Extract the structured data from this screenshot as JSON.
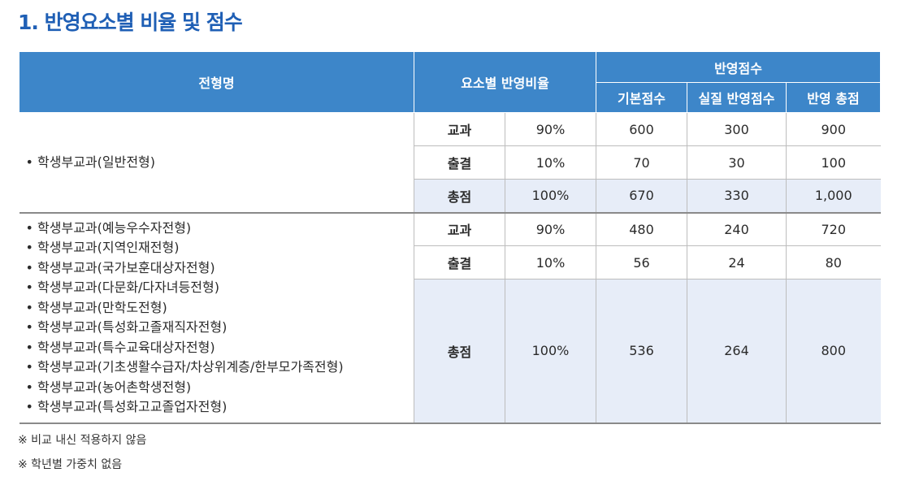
{
  "title": "1. 반영요소별 비율 및 점수",
  "headers": {
    "name": "전형명",
    "ratio": "요소별 반영비율",
    "score_group": "반영점수",
    "basic": "기본점수",
    "actual": "실질 반영점수",
    "total": "반영 총점"
  },
  "group1": {
    "names": [
      "학생부교과(일반전형)"
    ],
    "rows": [
      {
        "label": "교과",
        "ratio": "90%",
        "basic": "600",
        "actual": "300",
        "total": "900"
      },
      {
        "label": "출결",
        "ratio": "10%",
        "basic": "70",
        "actual": "30",
        "total": "100"
      },
      {
        "label": "총점",
        "ratio": "100%",
        "basic": "670",
        "actual": "330",
        "total": "1,000"
      }
    ]
  },
  "group2": {
    "names": [
      "학생부교과(예능우수자전형)",
      "학생부교과(지역인재전형)",
      "학생부교과(국가보훈대상자전형)",
      "학생부교과(다문화/다자녀등전형)",
      "학생부교과(만학도전형)",
      "학생부교과(특성화고졸재직자전형)",
      "학생부교과(특수교육대상자전형)",
      "학생부교과(기초생활수급자/차상위계층/한부모가족전형)",
      "학생부교과(농어촌학생전형)",
      "학생부교과(특성화고교졸업자전형)"
    ],
    "rows": [
      {
        "label": "교과",
        "ratio": "90%",
        "basic": "480",
        "actual": "240",
        "total": "720"
      },
      {
        "label": "출결",
        "ratio": "10%",
        "basic": "56",
        "actual": "24",
        "total": "80"
      },
      {
        "label": "총점",
        "ratio": "100%",
        "basic": "536",
        "actual": "264",
        "total": "800"
      }
    ]
  },
  "notes": [
    "※ 비교 내신 적용하지 않음",
    "※ 학년별 가중치 없음"
  ],
  "colors": {
    "title": "#1f5fb5",
    "header_bg": "#3d86c9",
    "total_row_bg": "#e7edf8"
  }
}
